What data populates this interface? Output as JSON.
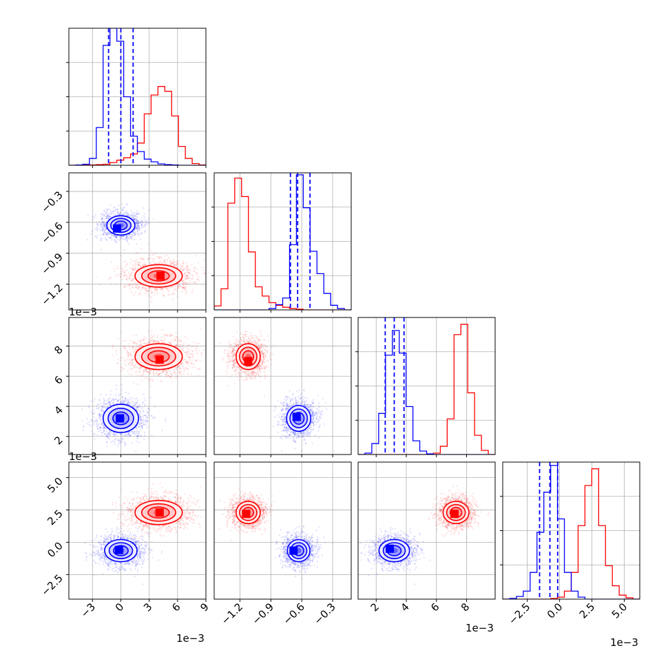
{
  "chart_data": {
    "type": "corner",
    "colors": {
      "series_a": "#ff0000",
      "series_b": "#0000ff"
    },
    "grid": true,
    "contour_levels": 3,
    "params": [
      {
        "range": [
          -5.5,
          9.0
        ],
        "ticks": [
          -3,
          0,
          3,
          6,
          9
        ],
        "tick_labels": [
          "−3",
          "0",
          "3",
          "6",
          "9"
        ],
        "offset_label": "1e−3"
      },
      {
        "range": [
          -1.45,
          -0.12
        ],
        "ticks": [
          -1.2,
          -0.9,
          -0.6,
          -0.3
        ],
        "tick_labels": [
          "−1.2",
          "−0.9",
          "−0.6",
          "−0.3"
        ],
        "offset_label": "1e−3"
      },
      {
        "range": [
          0.8,
          9.9
        ],
        "ticks": [
          2,
          4,
          6,
          8
        ],
        "tick_labels": [
          "2",
          "4",
          "6",
          "8"
        ],
        "offset_label": "1e−3"
      },
      {
        "range": [
          -4.4,
          6.2
        ],
        "ticks": [
          -2.5,
          0.0,
          2.5,
          5.0
        ],
        "tick_labels": [
          "−2.5",
          "0.0",
          "2.5",
          "5.0"
        ],
        "offset_label": "1e−3"
      }
    ],
    "series": [
      {
        "color": "#ff0000",
        "mean": [
          4.0,
          -1.12,
          7.3,
          2.3
        ],
        "sd": [
          1.5,
          0.08,
          0.55,
          0.55
        ],
        "quantiles": null
      },
      {
        "color": "#0000ff",
        "mean": [
          0.0,
          -0.63,
          3.2,
          -0.65
        ],
        "sd": [
          1.3,
          0.07,
          0.6,
          0.65
        ],
        "quantiles": [
          [
            -1.3,
            0.0,
            1.3
          ],
          [
            -0.71,
            -0.64,
            -0.52
          ],
          [
            2.6,
            3.2,
            3.85
          ],
          [
            -1.55,
            -0.75,
            -0.15
          ]
        ]
      }
    ],
    "pair_clouds": [
      {
        "row": 1,
        "col": 0,
        "red": {
          "center": [
            4.0,
            -1.12
          ],
          "rx": 3.2,
          "ry": 0.14,
          "peak": [
            4.2,
            -1.12
          ]
        },
        "blue": {
          "center": [
            0.0,
            -0.63
          ],
          "rx": 1.9,
          "ry": 0.12,
          "peak": [
            -0.4,
            -0.66
          ]
        }
      },
      {
        "row": 2,
        "col": 0,
        "red": {
          "center": [
            4.0,
            7.3
          ],
          "rx": 3.2,
          "ry": 1.1,
          "peak": [
            4.1,
            7.1
          ]
        },
        "blue": {
          "center": [
            0.0,
            3.2
          ],
          "rx": 2.4,
          "ry": 1.2,
          "peak": [
            -0.1,
            3.2
          ]
        }
      },
      {
        "row": 2,
        "col": 1,
        "red": {
          "center": [
            -1.12,
            7.3
          ],
          "rx": 0.15,
          "ry": 1.1,
          "peak": [
            -1.12,
            7.0
          ]
        },
        "blue": {
          "center": [
            -0.63,
            3.2
          ],
          "rx": 0.15,
          "ry": 1.1,
          "peak": [
            -0.65,
            3.3
          ]
        }
      },
      {
        "row": 3,
        "col": 0,
        "red": {
          "center": [
            4.0,
            2.3
          ],
          "rx": 3.2,
          "ry": 1.2,
          "peak": [
            4.1,
            2.3
          ]
        },
        "blue": {
          "center": [
            0.0,
            -0.65
          ],
          "rx": 2.2,
          "ry": 1.1,
          "peak": [
            -0.2,
            -0.6
          ]
        }
      },
      {
        "row": 3,
        "col": 1,
        "red": {
          "center": [
            -1.12,
            2.3
          ],
          "rx": 0.15,
          "ry": 1.1,
          "peak": [
            -1.14,
            2.2
          ]
        },
        "blue": {
          "center": [
            -0.63,
            -0.65
          ],
          "rx": 0.14,
          "ry": 1.1,
          "peak": [
            -0.68,
            -0.65
          ]
        }
      },
      {
        "row": 3,
        "col": 2,
        "red": {
          "center": [
            7.3,
            2.3
          ],
          "rx": 1.1,
          "ry": 1.1,
          "peak": [
            7.2,
            2.2
          ]
        },
        "blue": {
          "center": [
            3.2,
            -0.65
          ],
          "rx": 1.3,
          "ry": 1.1,
          "peak": [
            2.9,
            -0.5
          ]
        }
      }
    ],
    "histograms": [
      {
        "bins": [
          -5.5,
          -4.775,
          -4.05,
          -3.325,
          -2.6,
          -1.875,
          -1.15,
          -0.425,
          0.3,
          1.025,
          1.75,
          2.475,
          3.2,
          3.925,
          4.65,
          5.375,
          6.1,
          6.825,
          7.55,
          8.275,
          9.0
        ],
        "red": [
          0,
          0,
          1,
          1,
          2,
          3,
          8,
          15,
          22,
          33,
          65,
          150,
          205,
          230,
          216,
          144,
          55,
          20,
          5,
          1
        ],
        "blue": [
          0,
          1,
          3,
          20,
          110,
          350,
          400,
          362,
          200,
          85,
          40,
          18,
          10,
          4,
          2,
          1,
          0,
          0,
          0,
          0
        ],
        "ylim": [
          0,
          400
        ]
      },
      {
        "bins": [
          -1.45,
          -1.3835,
          -1.317,
          -1.2505,
          -1.184,
          -1.1175,
          -1.051,
          -0.9845,
          -0.918,
          -0.8515,
          -0.785,
          -0.7185,
          -0.652,
          -0.5855,
          -0.519,
          -0.4525,
          -0.386,
          -0.3195,
          -0.253,
          -0.1865,
          -0.12
        ],
        "red": [
          6,
          32,
          162,
          200,
          172,
          88,
          35,
          21,
          11,
          7,
          4,
          2,
          1,
          0,
          0,
          0,
          0,
          0,
          0,
          0
        ],
        "blue": [
          0,
          0,
          0,
          0,
          0,
          0,
          0,
          0,
          2,
          8,
          18,
          99,
          205,
          155,
          89,
          55,
          25,
          7,
          2,
          0
        ],
        "ylim": [
          0,
          208
        ]
      },
      {
        "bins": [
          0.8,
          1.255,
          1.71,
          2.165,
          2.62,
          3.075,
          3.53,
          3.985,
          4.44,
          4.895,
          5.35,
          5.805,
          6.26,
          6.715,
          7.17,
          7.625,
          8.08,
          8.535,
          8.99,
          9.445,
          9.9
        ],
        "red": [
          0,
          0,
          0,
          0,
          0,
          0,
          0,
          0,
          0,
          0,
          0,
          2,
          12,
          52,
          175,
          190,
          90,
          28,
          6,
          0
        ],
        "blue": [
          0,
          2,
          16,
          60,
          145,
          181,
          148,
          70,
          20,
          5,
          1,
          0,
          0,
          0,
          0,
          0,
          0,
          0,
          0,
          0
        ],
        "ylim": [
          0,
          200
        ]
      },
      {
        "bins": [
          -4.4,
          -3.87,
          -3.34,
          -2.81,
          -2.28,
          -1.75,
          -1.22,
          -0.69,
          -0.16,
          0.37,
          0.9,
          1.43,
          1.96,
          2.49,
          3.02,
          3.55,
          4.08,
          4.61,
          5.14,
          5.67,
          6.2
        ],
        "red": [
          0,
          0,
          0,
          0,
          0,
          0,
          0,
          1,
          3,
          12,
          40,
          110,
          170,
          195,
          110,
          50,
          20,
          6,
          2,
          0
        ],
        "blue": [
          0,
          1,
          4,
          12,
          40,
          100,
          160,
          200,
          120,
          40,
          12,
          3,
          0,
          0,
          0,
          0,
          0,
          0,
          0,
          0
        ],
        "ylim": [
          0,
          205
        ]
      }
    ]
  }
}
